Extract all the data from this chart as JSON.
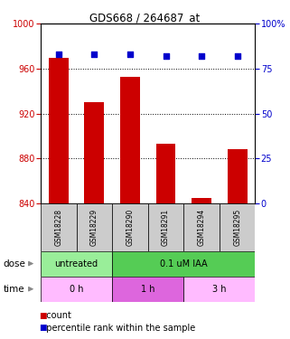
{
  "title": "GDS668 / 264687_at",
  "samples": [
    "GSM18228",
    "GSM18229",
    "GSM18290",
    "GSM18291",
    "GSM18294",
    "GSM18295"
  ],
  "bar_values": [
    970,
    930,
    953,
    893,
    845,
    888
  ],
  "percentile_values": [
    83,
    83,
    83,
    82,
    82,
    82
  ],
  "bar_color": "#cc0000",
  "dot_color": "#0000cc",
  "ylim_left": [
    840,
    1000
  ],
  "ylim_right": [
    0,
    100
  ],
  "yticks_left": [
    840,
    880,
    920,
    960,
    1000
  ],
  "yticks_right": [
    0,
    25,
    50,
    75,
    100
  ],
  "dose_labels": [
    {
      "label": "untreated",
      "start": 0,
      "end": 2,
      "color": "#99ee99"
    },
    {
      "label": "0.1 uM IAA",
      "start": 2,
      "end": 6,
      "color": "#55cc55"
    }
  ],
  "time_labels": [
    {
      "label": "0 h",
      "start": 0,
      "end": 2,
      "color": "#ffbbff"
    },
    {
      "label": "1 h",
      "start": 2,
      "end": 4,
      "color": "#dd66dd"
    },
    {
      "label": "3 h",
      "start": 4,
      "end": 6,
      "color": "#ffbbff"
    }
  ],
  "legend_red_label": "count",
  "legend_blue_label": "percentile rank within the sample",
  "dose_arrow_label": "dose",
  "time_arrow_label": "time",
  "sample_box_color": "#cccccc",
  "grid_dotted_ticks": [
    880,
    920,
    960
  ]
}
